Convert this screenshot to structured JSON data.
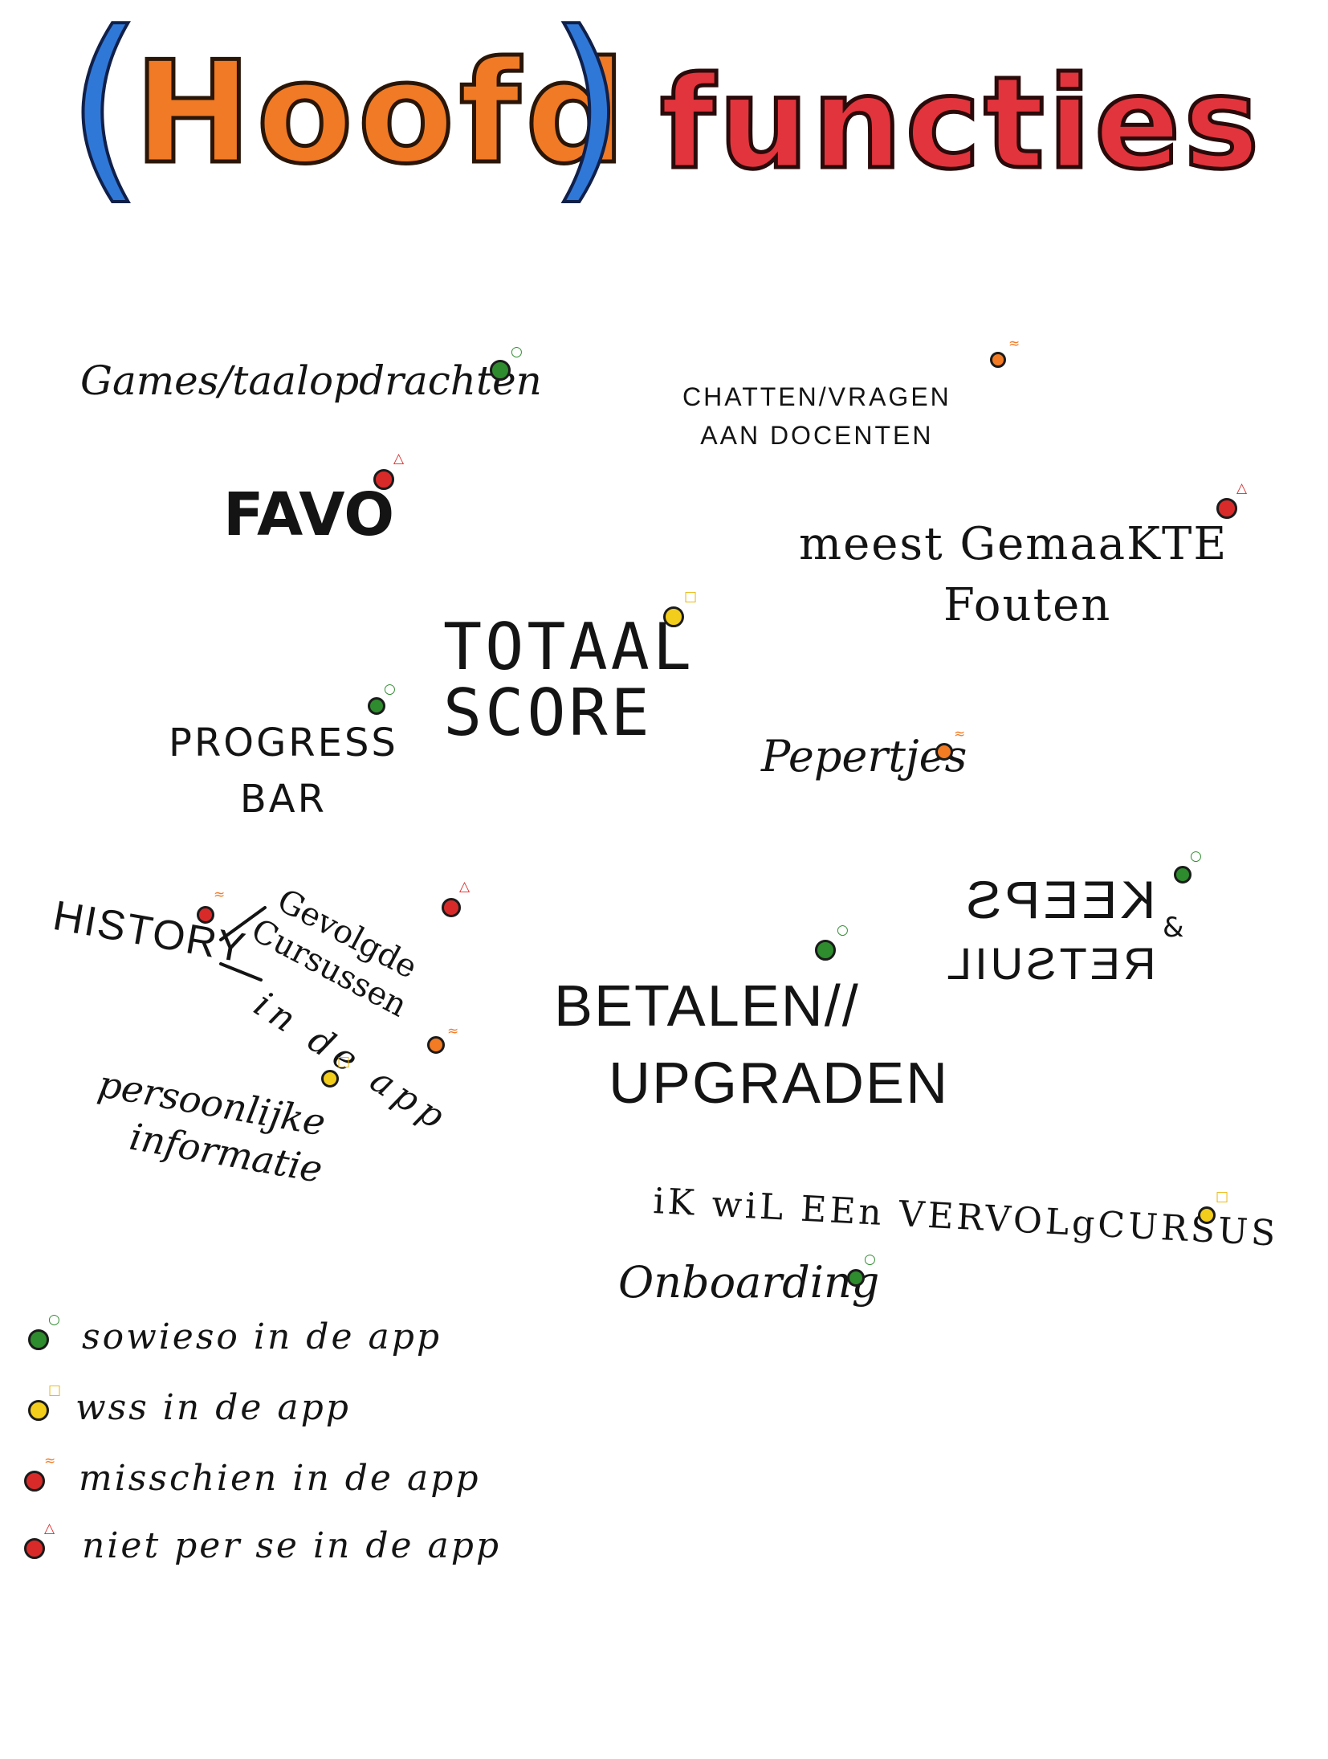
{
  "title": {
    "open_paren": "(",
    "hoofd": "Hoofd",
    "close_paren": ")",
    "functies": "functies"
  },
  "status_colors": {
    "green": "#2e8b2e",
    "yellow": "#f3cd1c",
    "orange": "#f27b24",
    "red": "#d92a2a"
  },
  "status_marks": {
    "green": "○",
    "yellow": "□",
    "orange": "≈",
    "red": "△"
  },
  "features": {
    "games": "Games/taalopdrachten",
    "chatten_line1": "CHATTEN/VRAGEN",
    "chatten_line2": "AAN DOCENTEN",
    "favo": "FAVO",
    "meest_line1": "meest GemaaKTE",
    "meest_line2": "Fouten",
    "totaal_line1": "TOTAAL",
    "totaal_line2": "SCORE",
    "progress_line1": "PROGRESS",
    "progress_line2": "BAR",
    "pepertjes": "Pepertjes",
    "keeps": "KEEPS",
    "retsuil": "RETSUIL",
    "amp": "&",
    "history": "HISTORY",
    "gevolgde_line1": "Gevolgde",
    "gevolgde_line2": "Cursussen",
    "in_de_app": "in de app",
    "persoonlijke_line1": "persoonlijke",
    "persoonlijke_line2": "informatie",
    "betalen_line1": "BETALEN//",
    "betalen_line2": "UPGRADEN",
    "vervolgcursus": "iK wiL EEn VERVOLgCURSUS",
    "onboarding": "Onboarding"
  },
  "legend": {
    "green": "sowieso in de app",
    "yellow": "wss in de app",
    "orange": "misschien in de app",
    "red": "niet per se in de app"
  }
}
